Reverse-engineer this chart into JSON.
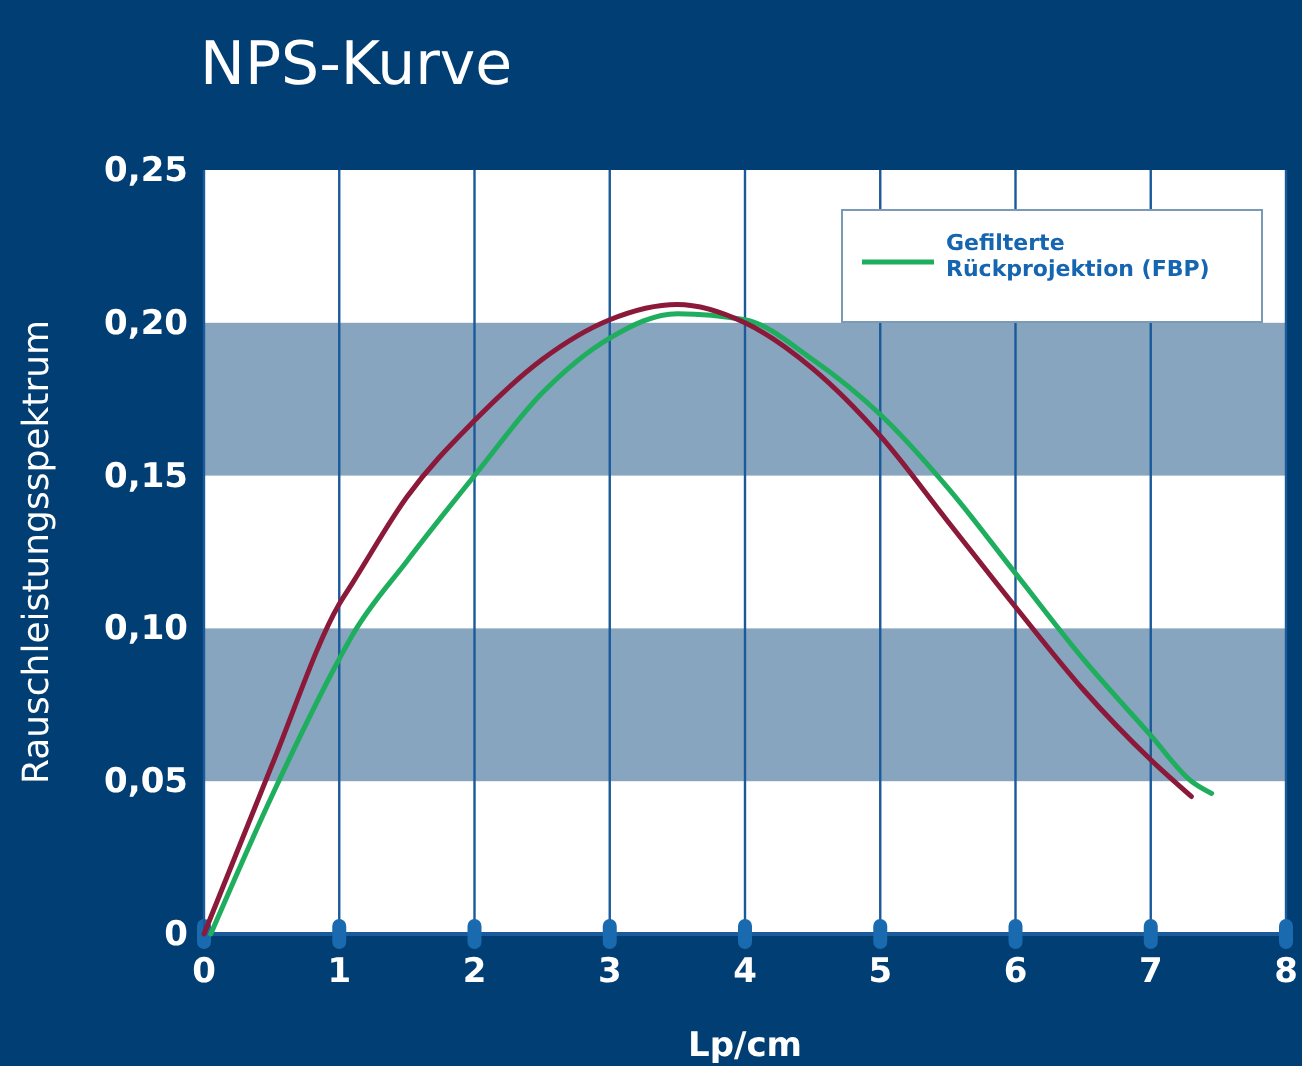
{
  "chart_data": {
    "type": "line",
    "title": "NPS-Kurve",
    "xlabel": "Lp/cm",
    "ylabel": "Rauschleistungsspektrum",
    "xlim": [
      0,
      8
    ],
    "xticks": [
      0,
      1,
      2,
      3,
      4,
      5,
      6,
      7,
      8
    ],
    "ylim": [
      0,
      0.25
    ],
    "yticks": [
      {
        "value": 0,
        "label": "0"
      },
      {
        "value": 0.05,
        "label": "0,05"
      },
      {
        "value": 0.1,
        "label": "0,10"
      },
      {
        "value": 0.15,
        "label": "0,15"
      },
      {
        "value": 0.2,
        "label": "0,20"
      },
      {
        "value": 0.25,
        "label": "0,25"
      }
    ],
    "grid": "x",
    "legend": "top right",
    "bands": [
      {
        "axis": "y",
        "from": 0.05,
        "to": 0.1,
        "color": "#87a5bf"
      },
      {
        "axis": "y",
        "from": 0.15,
        "to": 0.2,
        "color": "#87a5bf"
      }
    ],
    "series": [
      {
        "name": "Gefilterte Rückprojektion (FBP)",
        "color": "#1fae5e",
        "x": [
          0.05,
          0.5,
          1,
          1.1,
          1.5,
          2,
          2.5,
          3,
          3.5,
          4,
          4.5,
          5,
          5.5,
          6,
          6.5,
          7,
          7.3,
          7.45
        ],
        "values": [
          0,
          0.045,
          0.09,
          0.098,
          0.122,
          0.15,
          0.177,
          0.195,
          0.203,
          0.201,
          0.188,
          0.17,
          0.146,
          0.118,
          0.09,
          0.065,
          0.05,
          0.046
        ]
      },
      {
        "color": "#8b1a3a",
        "x": [
          0,
          0.5,
          1,
          1.1,
          1.5,
          2,
          2.5,
          3,
          3.5,
          4,
          4.5,
          5,
          5.5,
          6,
          6.5,
          7,
          7.3
        ],
        "values": [
          0,
          0.055,
          0.108,
          0.115,
          0.143,
          0.168,
          0.188,
          0.201,
          0.206,
          0.2,
          0.185,
          0.163,
          0.135,
          0.107,
          0.08,
          0.057,
          0.045
        ]
      }
    ]
  }
}
